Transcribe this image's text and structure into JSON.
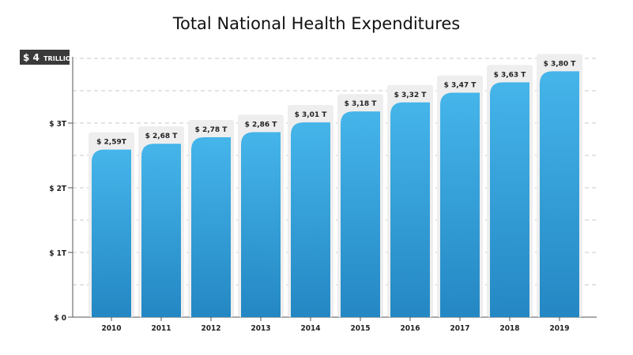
{
  "chart_data": {
    "type": "bar",
    "title": "Total National Health Expenditures",
    "unit_label": {
      "prefix": "$",
      "number": "4",
      "suffix": "TRILLIONS"
    },
    "categories": [
      "2010",
      "2011",
      "2012",
      "2013",
      "2014",
      "2015",
      "2016",
      "2017",
      "2018",
      "2019"
    ],
    "values": [
      2.59,
      2.68,
      2.78,
      2.86,
      3.01,
      3.18,
      3.32,
      3.47,
      3.63,
      3.8
    ],
    "data_labels": [
      "$ 2,59T",
      "$ 2,68 T",
      "$ 2,78 T",
      "$ 2,86 T",
      "$ 3,01 T",
      "$ 3,18 T",
      "$ 3,32 T",
      "$ 3,47 T",
      "$ 3,63 T",
      "$ 3,80 T"
    ],
    "y_ticks": [
      {
        "value": 0,
        "label": "$ 0"
      },
      {
        "value": 1,
        "label": "$ 1T"
      },
      {
        "value": 2,
        "label": "$ 2T"
      },
      {
        "value": 3,
        "label": "$ 3T"
      }
    ],
    "ylim": [
      0,
      4
    ],
    "grid": true,
    "colors": {
      "bar_top": "#45b5ea",
      "bar_bottom": "#2487c3",
      "label_box": "#eeeeee",
      "unit_box": "#3a3a3a",
      "grid": "#c8c8c8",
      "axis": "#555555"
    }
  }
}
